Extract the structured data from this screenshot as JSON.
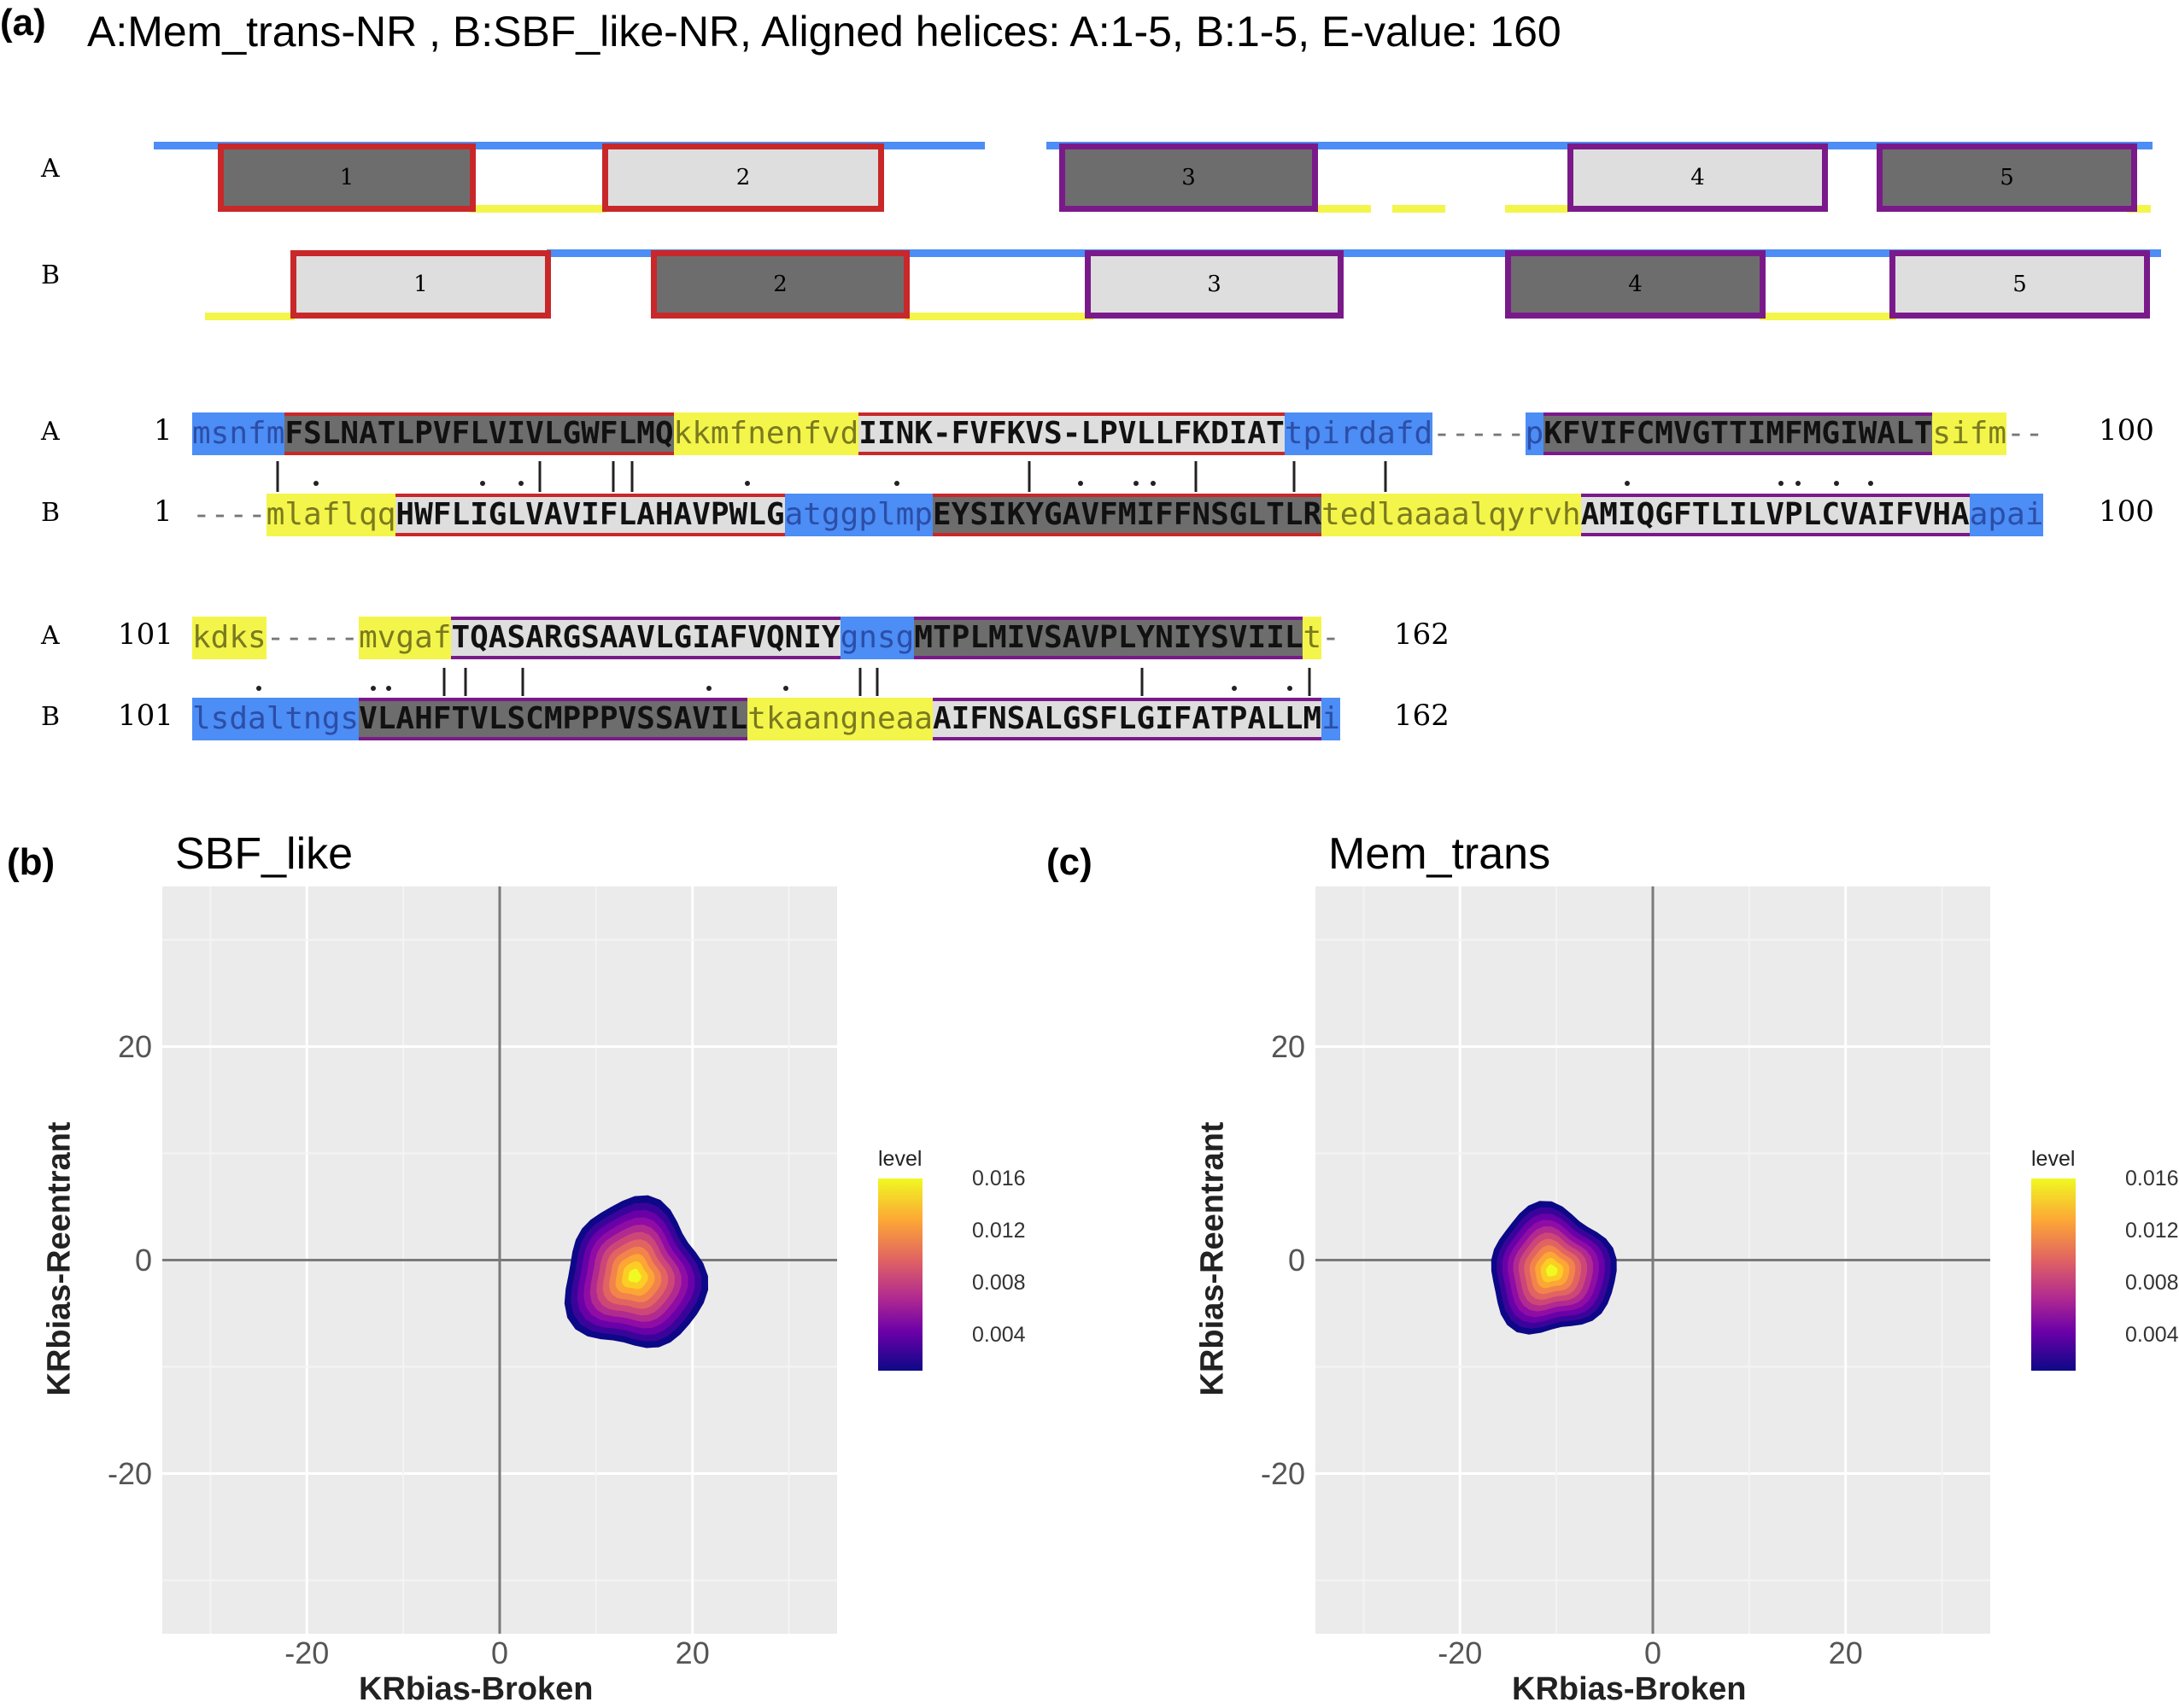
{
  "panel_labels": {
    "a": "(a)",
    "b": "(b)",
    "c": "(c)"
  },
  "header": "A:Mem_trans-NR ,  B:SBF_like-NR, Aligned helices: A:1-5, B:1-5, E-value: 160",
  "topology": {
    "rows": [
      {
        "label": "A",
        "helices": [
          "1",
          "2",
          "3",
          "4",
          "5"
        ]
      },
      {
        "label": "B",
        "helices": [
          "1",
          "2",
          "3",
          "4",
          "5"
        ]
      }
    ]
  },
  "alignment": {
    "blocks": [
      {
        "A": {
          "label": "A",
          "start": "1",
          "end": "100",
          "segments": [
            {
              "t": "msnfm",
              "k": "lb"
            },
            {
              "t": "FSLNATLPVFLVIVLGWFLMQ",
              "k": "dr"
            },
            {
              "t": "kkmfnenfvd",
              "k": "ly"
            },
            {
              "t": "IINK-FVFKVS-LPVLLFKDIAT",
              "k": "lr"
            },
            {
              "t": "tpirdafd",
              "k": "lb"
            },
            {
              "t": "-----",
              "k": "gap"
            },
            {
              "t": "p",
              "k": "lb"
            },
            {
              "t": "KFVIFCMVGTTIMFMGIWALT",
              "k": "dp"
            },
            {
              "t": "sifm",
              "k": "ly"
            },
            {
              "t": "--",
              "k": "gap"
            }
          ]
        },
        "B": {
          "label": "B",
          "start": "1",
          "end": "100",
          "segments": [
            {
              "t": "----",
              "k": "gap"
            },
            {
              "t": "mlaflqq",
              "k": "ly"
            },
            {
              "t": "HWFLIGLVAVIFLAHAVPWLG",
              "k": "lr"
            },
            {
              "t": "atggplmp",
              "k": "lb"
            },
            {
              "t": "EYSIKYGAVFMIFFNSGLTLR",
              "k": "dr"
            },
            {
              "t": "tedlaaaalqyrvh",
              "k": "ly"
            },
            {
              "t": "AMIQGFTLILVPLCVAIFVHA",
              "k": "lp"
            },
            {
              "t": "apai",
              "k": "lb"
            }
          ]
        }
      },
      {
        "A": {
          "label": "A",
          "start": "101",
          "end": "162",
          "segments": [
            {
              "t": "kdks",
              "k": "ly"
            },
            {
              "t": "-----",
              "k": "gap"
            },
            {
              "t": "mvgaf",
              "k": "ly"
            },
            {
              "t": "TQASARGSAAVLGIAFVQNIY",
              "k": "lp"
            },
            {
              "t": "gnsg",
              "k": "lb"
            },
            {
              "t": "MTPLMIVSAVPLYNIYSVIIL",
              "k": "dp"
            },
            {
              "t": "t",
              "k": "ly"
            },
            {
              "t": "-",
              "k": "gap"
            }
          ]
        },
        "B": {
          "label": "B",
          "start": "101",
          "end": "162",
          "segments": [
            {
              "t": "lsdaltngs",
              "k": "lb"
            },
            {
              "t": "VLAHFTVLSCMPPPVSSAVIL",
              "k": "dp"
            },
            {
              "t": "tkaangneaa",
              "k": "ly"
            },
            {
              "t": "AIFNSALGSFLGIFATPALLM",
              "k": "lp"
            },
            {
              "t": "i",
              "k": "lb"
            }
          ]
        }
      }
    ]
  },
  "chart_data": [
    {
      "type": "density_2d",
      "panel": "(b)",
      "title": "SBF_like",
      "xlabel": "KRbias-Broken",
      "ylabel": "KRbias-Reentrant",
      "xlim": [
        -35,
        35
      ],
      "ylim": [
        -35,
        35
      ],
      "xticks": [
        "-20",
        "0",
        "20"
      ],
      "yticks": [
        "20",
        "0",
        "-20"
      ],
      "grid": true,
      "density_peak": {
        "x": 14,
        "y": -1.5
      },
      "density_extent": {
        "x": [
          6.5,
          21
        ],
        "y": [
          -8,
          6
        ]
      },
      "legend": {
        "title": "level",
        "labels": [
          "0.016",
          "0.012",
          "0.008",
          "0.004"
        ],
        "position": "right"
      }
    },
    {
      "type": "density_2d",
      "panel": "(c)",
      "title": "Mem_trans",
      "xlabel": "KRbias-Broken",
      "ylabel": "KRbias-Reentrant",
      "xlim": [
        -35,
        35
      ],
      "ylim": [
        -35,
        35
      ],
      "xticks": [
        "-20",
        "0",
        "20"
      ],
      "yticks": [
        "20",
        "0",
        "-20"
      ],
      "grid": true,
      "density_peak": {
        "x": -10.5,
        "y": -1
      },
      "density_extent": {
        "x": [
          -17,
          -4
        ],
        "y": [
          -7,
          5
        ]
      },
      "legend": {
        "title": "level",
        "labels": [
          "0.016",
          "0.012",
          "0.008",
          "0.004"
        ],
        "position": "right"
      }
    }
  ],
  "colors": {
    "blue": "#4c8df6",
    "yellow": "#f4f54a",
    "red_border": "#c8282a",
    "purple_border": "#7a1a8a",
    "dark_fill": "#6d6d6d",
    "light_fill": "#dedede",
    "panel_bg": "#ebebeb"
  }
}
